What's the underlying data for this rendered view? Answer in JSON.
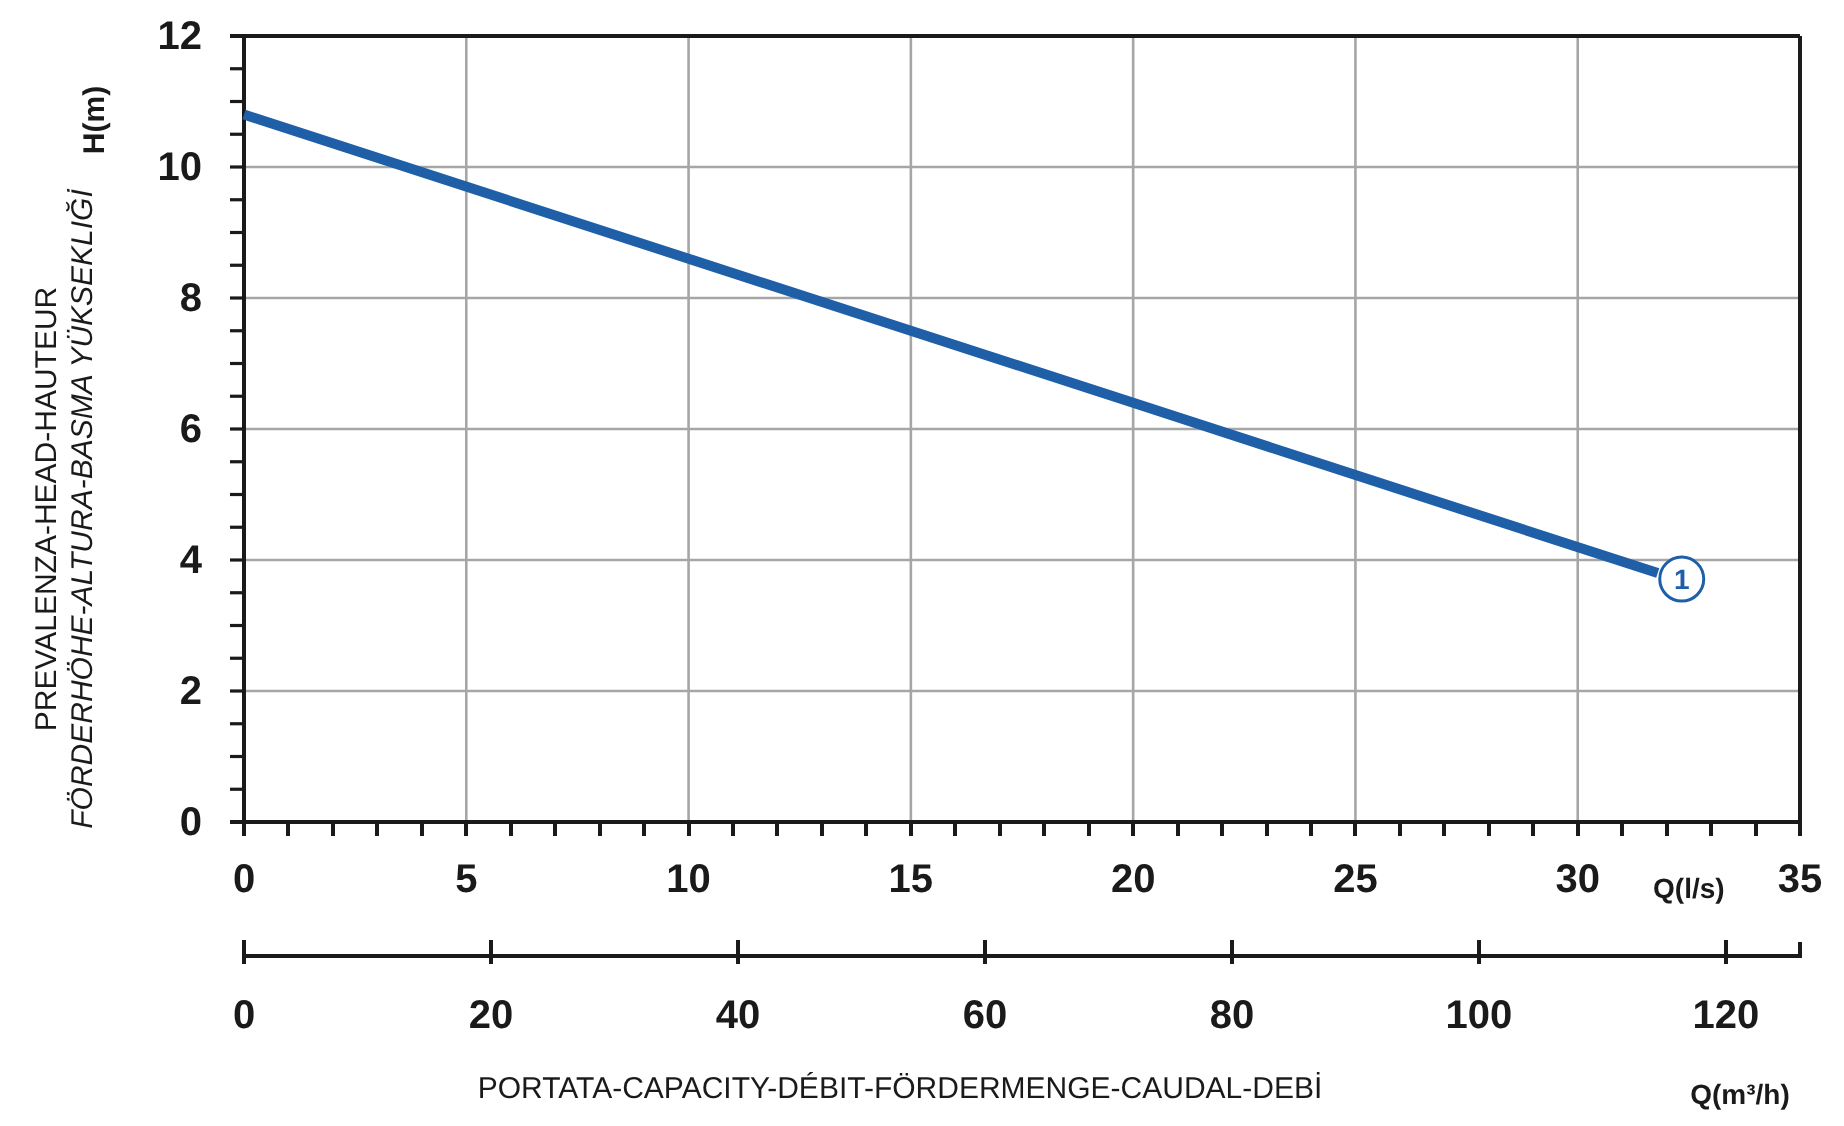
{
  "chart_data": {
    "type": "line",
    "ylabel": "PREVALENZA-HEAD-HAUTEUR\nFÖRDERHÖHE-ALTURA-BASMA YÜKSEKLIĞİ",
    "xlabel": "Q(l/s)",
    "x2label": "Q(m³/h)",
    "annotations": [
      "H(m)",
      "PORTATA-CAPACITY-DÉBIT-FÖRDERMENGE-CAUDAL-DEBİ",
      {
        "text": "1",
        "x": 31.8,
        "y": 3.8
      }
    ],
    "x": [
      0,
      10,
      20,
      31.8
    ],
    "series": [
      {
        "color": "#1f5fa8",
        "values": [
          10.8,
          8.6,
          6.4,
          3.8
        ]
      }
    ],
    "xlim": [
      0,
      35
    ],
    "xticks": [
      0,
      {
        "value": 1,
        "label": null
      },
      {
        "value": 2,
        "label": null
      },
      {
        "value": 3,
        "label": null
      },
      {
        "value": 4,
        "label": null
      },
      5,
      {
        "value": 6,
        "label": null
      },
      {
        "value": 7,
        "label": null
      },
      {
        "value": 8,
        "label": null
      },
      {
        "value": 9,
        "label": null
      },
      10,
      {
        "value": 11,
        "label": null
      },
      {
        "value": 12,
        "label": null
      },
      {
        "value": 13,
        "label": null
      },
      {
        "value": 14,
        "label": null
      },
      15,
      {
        "value": 16,
        "label": null
      },
      {
        "value": 17,
        "label": null
      },
      {
        "value": 18,
        "label": null
      },
      {
        "value": 19,
        "label": null
      },
      20,
      {
        "value": 21,
        "label": null
      },
      {
        "value": 22,
        "label": null
      },
      {
        "value": 23,
        "label": null
      },
      {
        "value": 24,
        "label": null
      },
      25,
      {
        "value": 26,
        "label": null
      },
      {
        "value": 27,
        "label": null
      },
      {
        "value": 28,
        "label": null
      },
      {
        "value": 29,
        "label": null
      },
      30,
      {
        "value": 31,
        "label": null
      },
      {
        "value": 32,
        "label": null
      },
      {
        "value": 33,
        "label": null
      },
      {
        "value": 34,
        "label": null
      },
      35
    ],
    "ylim": [
      0,
      12
    ],
    "yticks": [
      0,
      {
        "value": 0.5,
        "label": null
      },
      {
        "value": 1,
        "label": null
      },
      {
        "value": 1.5,
        "label": null
      },
      2,
      {
        "value": 2.5,
        "label": null
      },
      {
        "value": 3,
        "label": null
      },
      {
        "value": 3.5,
        "label": null
      },
      4,
      {
        "value": 4.5,
        "label": null
      },
      {
        "value": 5,
        "label": null
      },
      {
        "value": 5.5,
        "label": null
      },
      6,
      {
        "value": 6.5,
        "label": null
      },
      {
        "value": 7,
        "label": null
      },
      {
        "value": 7.5,
        "label": null
      },
      8,
      {
        "value": 8.5,
        "label": null
      },
      {
        "value": 9,
        "label": null
      },
      {
        "value": 9.5,
        "label": null
      },
      10,
      {
        "value": 10.5,
        "label": null
      },
      {
        "value": 11,
        "label": null
      },
      {
        "value": 11.5,
        "label": null
      },
      12
    ],
    "x2lim": [
      0,
      126
    ],
    "x2ticks": [
      0,
      20,
      40,
      60,
      80,
      100,
      120
    ],
    "grid": true,
    "legend": false,
    "marker": "none",
    "line_style": "solid"
  }
}
